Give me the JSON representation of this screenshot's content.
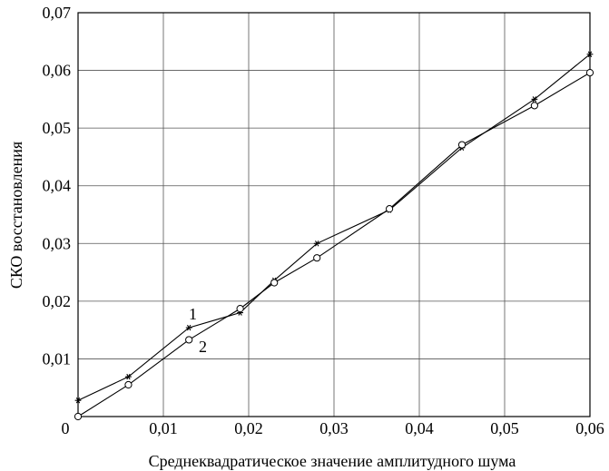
{
  "chart_data": {
    "type": "line",
    "xlabel": "Среднеквадратическое значение амплитудного шума",
    "ylabel": "СКО восстановления",
    "xlim": [
      0,
      0.06
    ],
    "ylim": [
      0,
      0.07
    ],
    "x_ticks": [
      "0",
      "0,01",
      "0,02",
      "0,03",
      "0,04",
      "0,05",
      "0,06"
    ],
    "y_ticks": [
      "0,01",
      "0,02",
      "0,03",
      "0,04",
      "0,05",
      "0,06",
      "0,07"
    ],
    "grid": true,
    "series": [
      {
        "name": "1",
        "marker": "star",
        "x": [
          0.0,
          0.0059,
          0.013,
          0.019,
          0.023,
          0.028,
          0.0365,
          0.045,
          0.0535,
          0.06
        ],
        "y": [
          0.0028,
          0.0069,
          0.0154,
          0.018,
          0.0236,
          0.03,
          0.0358,
          0.0466,
          0.055,
          0.0628
        ]
      },
      {
        "name": "2",
        "marker": "circle",
        "x": [
          0.0,
          0.0059,
          0.013,
          0.019,
          0.023,
          0.028,
          0.0365,
          0.045,
          0.0535,
          0.06
        ],
        "y": [
          0.0,
          0.0055,
          0.0133,
          0.0187,
          0.0232,
          0.0275,
          0.036,
          0.0471,
          0.0539,
          0.0596
        ]
      }
    ]
  }
}
